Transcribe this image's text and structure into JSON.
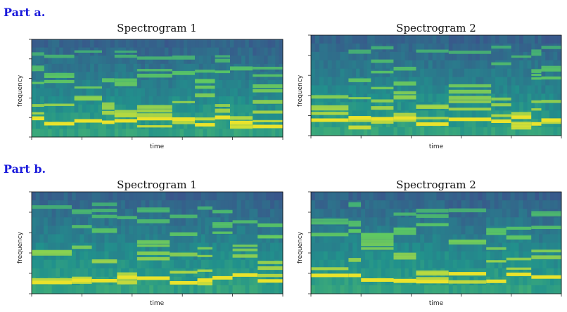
{
  "parts": {
    "a": "Part a.",
    "b": "Part b."
  },
  "chart_data": [
    {
      "type": "heatmap",
      "part": "a",
      "title": "Spectrogram 1",
      "xlabel": "time",
      "ylabel": "frequency",
      "colormap": "viridis"
    },
    {
      "type": "heatmap",
      "part": "a",
      "title": "Spectrogram 2",
      "xlabel": "time",
      "ylabel": "frequency",
      "colormap": "viridis"
    },
    {
      "type": "heatmap",
      "part": "b",
      "title": "Spectrogram 1",
      "xlabel": "time",
      "ylabel": "frequency",
      "colormap": "viridis"
    },
    {
      "type": "heatmap",
      "part": "b",
      "title": "Spectrogram 2",
      "xlabel": "time",
      "ylabel": "frequency",
      "colormap": "viridis"
    }
  ]
}
